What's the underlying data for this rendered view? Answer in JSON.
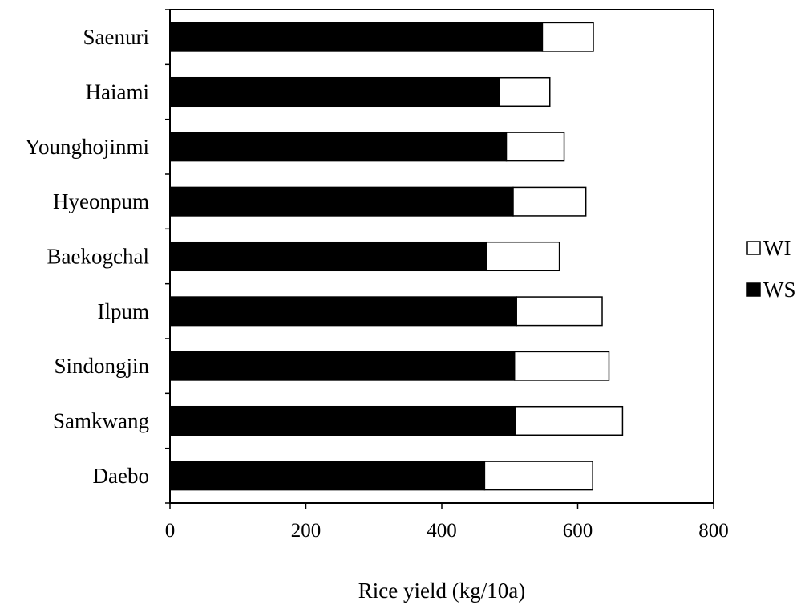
{
  "chart_data": {
    "type": "bar",
    "orientation": "horizontal",
    "stacked": true,
    "title": "",
    "categories": [
      "Saenuri",
      "Haiami",
      "Younghojinmi",
      "Hyeonpum",
      "Baekogchal",
      "Ilpum",
      "Sindongjin",
      "Samkwang",
      "Daebo"
    ],
    "series": [
      {
        "name": "WS",
        "color": "#000000",
        "values": [
          548,
          485,
          495,
          505,
          466,
          510,
          507,
          508,
          463
        ]
      },
      {
        "name": "WI",
        "color": "#ffffff",
        "values": [
          75,
          74,
          85,
          107,
          107,
          126,
          139,
          158,
          159
        ]
      }
    ],
    "xlabel": "Rice yield (kg/10a)",
    "ylabel": "",
    "xlim": [
      0,
      800
    ],
    "xticks": [
      "0",
      "200",
      "400",
      "600",
      "800"
    ],
    "grid": false,
    "legend": {
      "position": "right",
      "entries": [
        "WI",
        "WS"
      ]
    }
  }
}
